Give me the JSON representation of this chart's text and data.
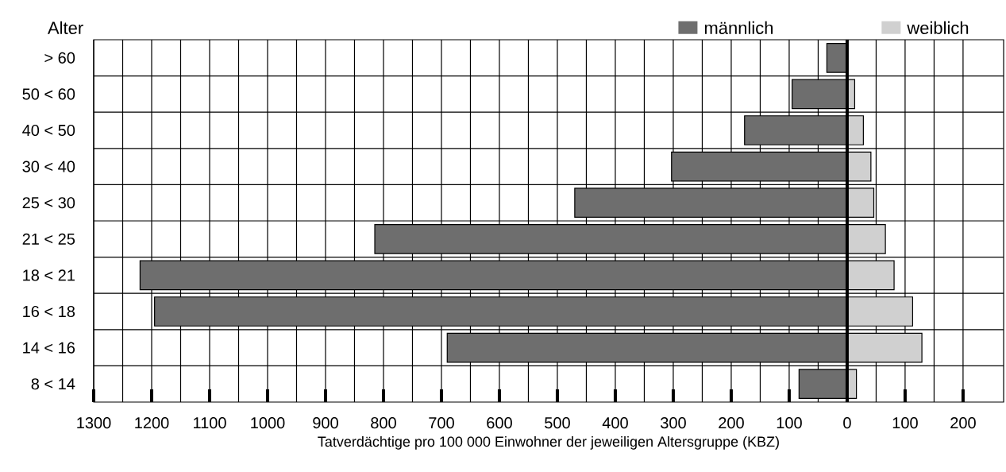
{
  "chart_data": {
    "type": "bar",
    "orientation": "horizontal",
    "stacked": true,
    "categories": [
      "> 60",
      "50 < 60",
      "40 < 50",
      "30 < 40",
      "25 < 30",
      "21 < 25",
      "18 < 21",
      "16 < 18",
      "14 < 16",
      "8 < 14"
    ],
    "series": [
      {
        "name": "männlich",
        "color": "#6e6e6e",
        "values": [
          -35,
          -95,
          -177,
          -303,
          -470,
          -815,
          -1220,
          -1195,
          -690,
          -83
        ]
      },
      {
        "name": "weiblich",
        "color": "#d0d0d0",
        "values": [
          null,
          13,
          28,
          41,
          46,
          66,
          81,
          113,
          129,
          16
        ]
      }
    ],
    "xlabel": "Tatverdächtige pro 100 000 Einwohner der jeweiligen Altersgruppe (KBZ)",
    "ylabel": "Alter",
    "xlim": [
      -1300,
      270
    ],
    "xticks": [
      {
        "value": -1300,
        "label": "1300"
      },
      {
        "value": -1200,
        "label": "1200"
      },
      {
        "value": -1100,
        "label": "1100"
      },
      {
        "value": -1000,
        "label": "1000"
      },
      {
        "value": -900,
        "label": "900"
      },
      {
        "value": -800,
        "label": "800"
      },
      {
        "value": -700,
        "label": "700"
      },
      {
        "value": -600,
        "label": "600"
      },
      {
        "value": -500,
        "label": "500"
      },
      {
        "value": -400,
        "label": "400"
      },
      {
        "value": -300,
        "label": "300"
      },
      {
        "value": -200,
        "label": "200"
      },
      {
        "value": -100,
        "label": "100"
      },
      0,
      100,
      200
    ],
    "grid": true,
    "legend": "top right"
  }
}
